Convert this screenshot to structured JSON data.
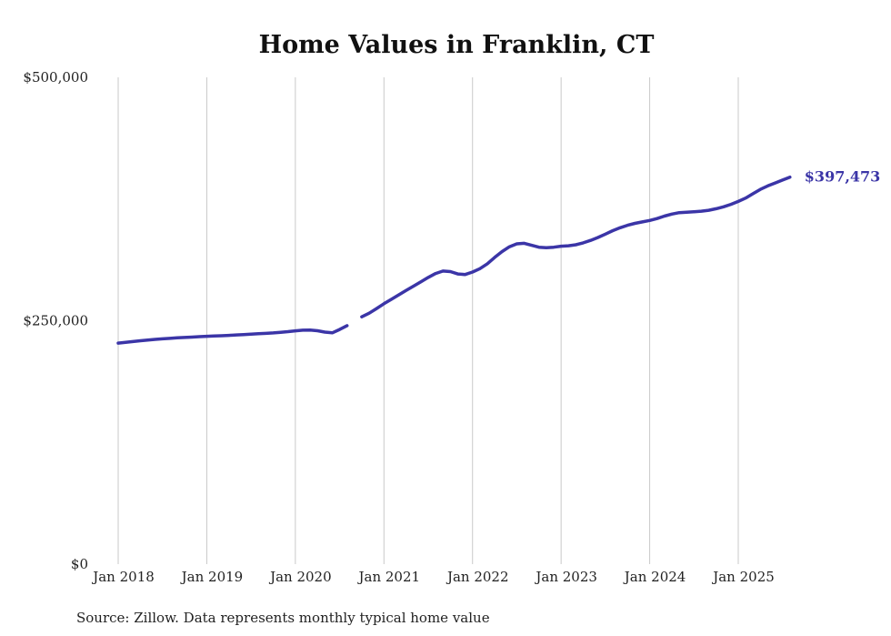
{
  "chart_data": {
    "type": "line",
    "title": "Home Values in Franklin, CT",
    "source_note": "Source: Zillow. Data represents monthly typical home value",
    "end_label": "$397,473",
    "latest_value": 397473,
    "line_color": "#3b35a7",
    "grid_color": "#c9c9c9",
    "legend_position": "none",
    "grid": "vertical-only",
    "ylim": [
      0,
      500000
    ],
    "y_ticks": [
      {
        "value": 0,
        "label": "$0"
      },
      {
        "value": 250000,
        "label": "$250,000"
      },
      {
        "value": 500000,
        "label": "$500,000"
      }
    ],
    "x_tick_labels": [
      "Jan 2018",
      "Jan 2019",
      "Jan 2020",
      "Jan 2021",
      "Jan 2022",
      "Jan 2023",
      "Jan 2024",
      "Jan 2025"
    ],
    "x_start": "2018-01",
    "x_frequency": "monthly",
    "series": [
      {
        "name": "Typical home value",
        "values": [
          227000,
          227800,
          228600,
          229400,
          230100,
          230800,
          231400,
          231900,
          232400,
          232800,
          233200,
          233600,
          234000,
          234300,
          234600,
          235000,
          235400,
          235800,
          236200,
          236600,
          237000,
          237500,
          238100,
          238800,
          239600,
          240300,
          240500,
          239700,
          238300,
          237600,
          241000,
          245000,
          null,
          254000,
          257800,
          262500,
          267500,
          272000,
          276500,
          281000,
          285500,
          290000,
          294500,
          298500,
          301000,
          300500,
          298000,
          297500,
          300000,
          303500,
          308500,
          315000,
          321000,
          326000,
          329000,
          329500,
          327500,
          325500,
          325000,
          325500,
          326500,
          327000,
          328000,
          330000,
          332500,
          335500,
          339000,
          342500,
          345500,
          348000,
          350000,
          351500,
          353000,
          355000,
          357500,
          359500,
          361000,
          361500,
          362000,
          362500,
          363500,
          365000,
          367000,
          369500,
          372500,
          376000,
          380500,
          385000,
          388500,
          391500,
          394500,
          397473
        ]
      }
    ]
  }
}
